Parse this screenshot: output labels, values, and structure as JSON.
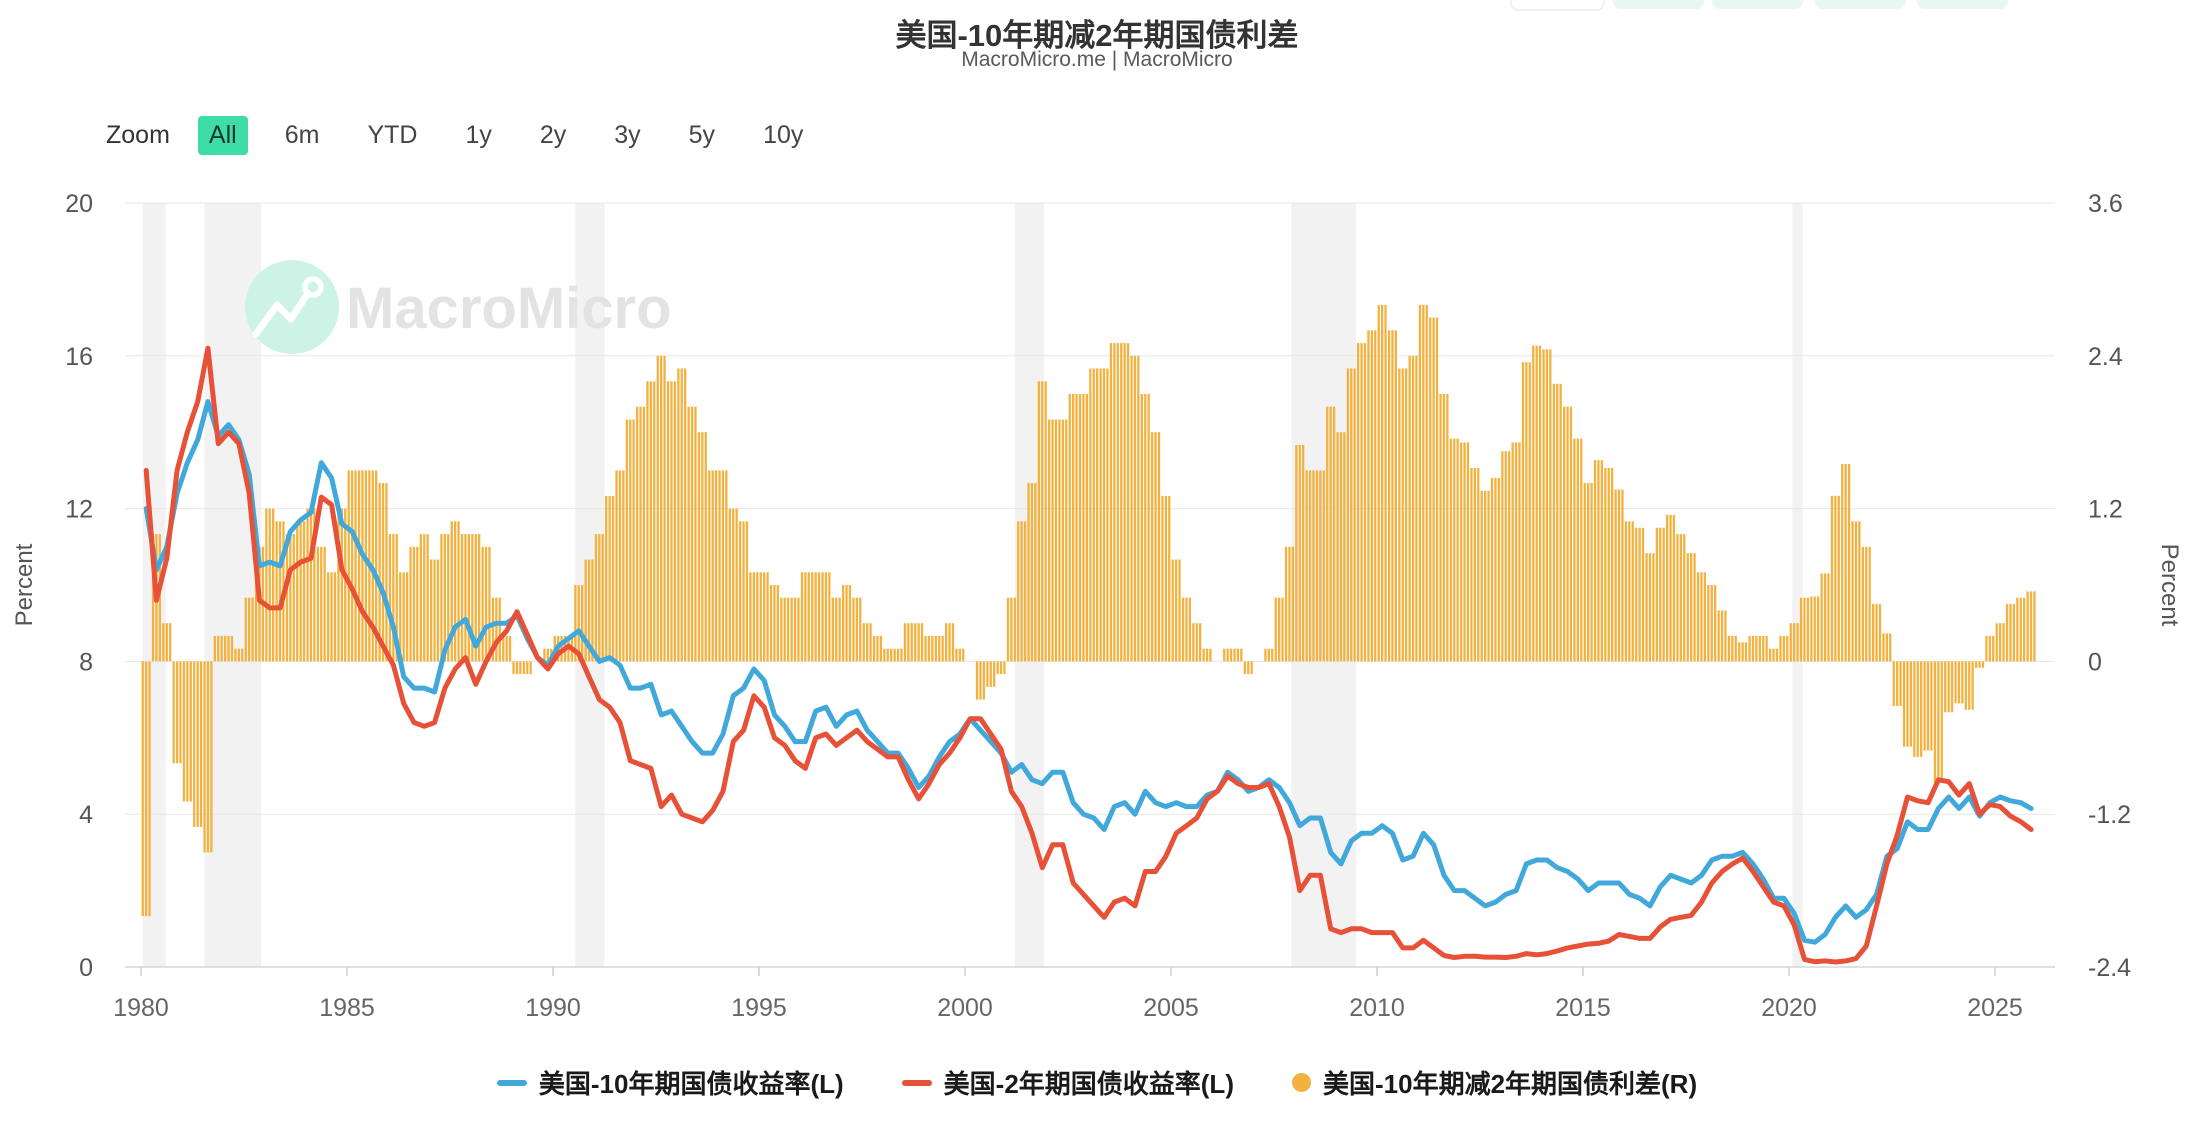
{
  "header": {
    "title": "美国-10年期减2年期国债利差",
    "subtitle": "MacroMicro.me | MacroMicro"
  },
  "topbar": {
    "partial_buttons": [
      "outline",
      "mint",
      "mint",
      "mint",
      "mint"
    ]
  },
  "zoom_toolbar": {
    "label": "Zoom",
    "options": [
      "All",
      "6m",
      "YTD",
      "1y",
      "2y",
      "3y",
      "5y",
      "10y"
    ],
    "selected": "All"
  },
  "watermark": {
    "text": "MacroMicro",
    "logo": "zigzag-line-with-dot-icon"
  },
  "colors": {
    "accent_teal": "#3EDDA8",
    "line_10y": "#41A8DB",
    "line_2y": "#E65138",
    "bars_spread": "#F3B23F",
    "recession_band": "#F2F2F2",
    "watermark_mint": "#CDF3E6",
    "watermark_text": "#E3E3E3",
    "grid": "#E7E7E7",
    "axis_text": "#555555"
  },
  "legend": {
    "items": [
      {
        "label": "美国-10年期国债收益率(L)",
        "color": "#41A8DB",
        "marker": "line"
      },
      {
        "label": "美国-2年期国债收益率(L)",
        "color": "#E65138",
        "marker": "line"
      },
      {
        "label": "美国-10年期减2年期国债利差(R)",
        "color": "#F3B23F",
        "marker": "circle"
      }
    ]
  },
  "chart_data": {
    "type": "mixed",
    "title": "美国-10年期减2年期国债利差",
    "x": {
      "start_year": 1980,
      "points_per_year": 4,
      "count": 184
    },
    "xticks": [
      1980,
      1985,
      1990,
      1995,
      2000,
      2005,
      2010,
      2015,
      2020,
      2025
    ],
    "yaxis_left": {
      "title": "Percent",
      "ticks": [
        0,
        4,
        8,
        12,
        16,
        20
      ],
      "range": [
        0,
        20
      ]
    },
    "yaxis_right": {
      "title": "Percent",
      "ticks": [
        -2.4,
        -1.2,
        0,
        1.2,
        2.4,
        3.6
      ],
      "range": [
        -2.4,
        3.6
      ]
    },
    "grid": "horizontal",
    "recessions": [
      [
        1980.04,
        1980.6
      ],
      [
        1981.54,
        1982.92
      ],
      [
        1990.54,
        1991.25
      ],
      [
        2001.21,
        2001.92
      ],
      [
        2007.92,
        2009.5
      ],
      [
        2020.08,
        2020.33
      ]
    ],
    "series": [
      {
        "name": "美国-10年期国债收益率(L)",
        "type": "line",
        "axis": "left",
        "color": "#41A8DB",
        "values": [
          12.0,
          10.4,
          11.0,
          12.4,
          13.2,
          13.8,
          14.8,
          13.9,
          14.2,
          13.8,
          12.9,
          10.5,
          10.6,
          10.5,
          11.4,
          11.7,
          11.9,
          13.2,
          12.8,
          11.6,
          11.4,
          10.8,
          10.4,
          9.8,
          8.9,
          7.6,
          7.3,
          7.3,
          7.2,
          8.3,
          8.9,
          9.1,
          8.4,
          8.9,
          9.0,
          9.0,
          9.2,
          8.6,
          8.1,
          7.9,
          8.4,
          8.6,
          8.8,
          8.4,
          8.0,
          8.1,
          7.9,
          7.3,
          7.3,
          7.4,
          6.6,
          6.7,
          6.3,
          5.9,
          5.6,
          5.6,
          6.1,
          7.1,
          7.3,
          7.8,
          7.5,
          6.6,
          6.3,
          5.9,
          5.9,
          6.7,
          6.8,
          6.3,
          6.6,
          6.7,
          6.2,
          5.9,
          5.6,
          5.6,
          5.2,
          4.7,
          5.0,
          5.5,
          5.9,
          6.1,
          6.5,
          6.2,
          5.9,
          5.6,
          5.1,
          5.3,
          4.9,
          4.8,
          5.1,
          5.1,
          4.3,
          4.0,
          3.9,
          3.6,
          4.2,
          4.3,
          4.0,
          4.6,
          4.3,
          4.2,
          4.3,
          4.2,
          4.2,
          4.5,
          4.6,
          5.1,
          4.9,
          4.6,
          4.7,
          4.9,
          4.7,
          4.3,
          3.7,
          3.9,
          3.9,
          3.0,
          2.7,
          3.3,
          3.5,
          3.5,
          3.7,
          3.5,
          2.8,
          2.9,
          3.5,
          3.2,
          2.4,
          2.0,
          2.0,
          1.8,
          1.6,
          1.7,
          1.9,
          2.0,
          2.7,
          2.8,
          2.8,
          2.6,
          2.5,
          2.3,
          2.0,
          2.2,
          2.2,
          2.2,
          1.9,
          1.8,
          1.6,
          2.1,
          2.4,
          2.3,
          2.2,
          2.4,
          2.8,
          2.9,
          2.9,
          3.0,
          2.7,
          2.3,
          1.8,
          1.8,
          1.4,
          0.7,
          0.65,
          0.85,
          1.3,
          1.6,
          1.3,
          1.5,
          1.9,
          2.9,
          3.1,
          3.8,
          3.6,
          3.6,
          4.15,
          4.45,
          4.15,
          4.45,
          3.95,
          4.3,
          4.45,
          4.35,
          4.3,
          4.15
        ]
      },
      {
        "name": "美国-2年期国债收益率(L)",
        "type": "line",
        "axis": "left",
        "color": "#E65138",
        "values": [
          13.0,
          9.6,
          10.7,
          13.0,
          14.0,
          14.8,
          16.2,
          13.7,
          14.0,
          13.7,
          12.4,
          9.6,
          9.4,
          9.4,
          10.4,
          10.6,
          10.7,
          12.3,
          12.1,
          10.4,
          9.9,
          9.3,
          8.9,
          8.4,
          7.9,
          6.9,
          6.4,
          6.3,
          6.4,
          7.3,
          7.8,
          8.1,
          7.4,
          8.0,
          8.5,
          8.8,
          9.3,
          8.7,
          8.1,
          7.8,
          8.2,
          8.4,
          8.2,
          7.6,
          7.0,
          6.8,
          6.4,
          5.4,
          5.3,
          5.2,
          4.2,
          4.5,
          4.0,
          3.9,
          3.8,
          4.1,
          4.6,
          5.9,
          6.2,
          7.1,
          6.8,
          6.0,
          5.8,
          5.4,
          5.2,
          6.0,
          6.1,
          5.8,
          6.0,
          6.2,
          5.9,
          5.7,
          5.5,
          5.5,
          4.9,
          4.4,
          4.8,
          5.3,
          5.6,
          6.0,
          6.5,
          6.5,
          6.1,
          5.7,
          4.6,
          4.2,
          3.5,
          2.6,
          3.2,
          3.2,
          2.2,
          1.9,
          1.6,
          1.3,
          1.7,
          1.8,
          1.6,
          2.5,
          2.5,
          2.9,
          3.5,
          3.7,
          3.9,
          4.4,
          4.6,
          5.0,
          4.8,
          4.7,
          4.7,
          4.8,
          4.2,
          3.4,
          2.0,
          2.4,
          2.4,
          1.0,
          0.9,
          1.0,
          1.0,
          0.9,
          0.9,
          0.9,
          0.5,
          0.5,
          0.7,
          0.5,
          0.3,
          0.25,
          0.28,
          0.28,
          0.26,
          0.26,
          0.25,
          0.28,
          0.35,
          0.32,
          0.35,
          0.42,
          0.5,
          0.55,
          0.6,
          0.62,
          0.68,
          0.85,
          0.8,
          0.75,
          0.75,
          1.05,
          1.25,
          1.3,
          1.35,
          1.7,
          2.2,
          2.5,
          2.7,
          2.85,
          2.5,
          2.1,
          1.7,
          1.6,
          1.1,
          0.2,
          0.14,
          0.16,
          0.13,
          0.16,
          0.22,
          0.55,
          1.6,
          2.7,
          3.45,
          4.45,
          4.35,
          4.3,
          4.9,
          4.85,
          4.5,
          4.8,
          4.0,
          4.25,
          4.2,
          3.95,
          3.8,
          3.6
        ]
      },
      {
        "name": "美国-10年期减2年期国债利差(R)",
        "type": "bar",
        "axis": "right",
        "color": "#F3B23F",
        "values": [
          -2.0,
          1.0,
          0.3,
          -0.8,
          -1.1,
          -1.3,
          -1.5,
          0.2,
          0.2,
          0.1,
          0.5,
          0.9,
          1.2,
          1.1,
          1.0,
          1.1,
          1.2,
          0.9,
          0.7,
          1.2,
          1.5,
          1.5,
          1.5,
          1.4,
          1.0,
          0.7,
          0.9,
          1.0,
          0.8,
          1.0,
          1.1,
          1.0,
          1.0,
          0.9,
          0.5,
          0.2,
          -0.1,
          -0.1,
          0.0,
          0.1,
          0.2,
          0.2,
          0.6,
          0.8,
          1.0,
          1.3,
          1.5,
          1.9,
          2.0,
          2.2,
          2.4,
          2.2,
          2.3,
          2.0,
          1.8,
          1.5,
          1.5,
          1.2,
          1.1,
          0.7,
          0.7,
          0.6,
          0.5,
          0.5,
          0.7,
          0.7,
          0.7,
          0.5,
          0.6,
          0.5,
          0.3,
          0.2,
          0.1,
          0.1,
          0.3,
          0.3,
          0.2,
          0.2,
          0.3,
          0.1,
          0.0,
          -0.3,
          -0.2,
          -0.1,
          0.5,
          1.1,
          1.4,
          2.2,
          1.9,
          1.9,
          2.1,
          2.1,
          2.3,
          2.3,
          2.5,
          2.5,
          2.4,
          2.1,
          1.8,
          1.3,
          0.8,
          0.5,
          0.3,
          0.1,
          0.0,
          0.1,
          0.1,
          -0.1,
          0.0,
          0.1,
          0.5,
          0.9,
          1.7,
          1.5,
          1.5,
          2.0,
          1.8,
          2.3,
          2.5,
          2.6,
          2.8,
          2.6,
          2.3,
          2.4,
          2.8,
          2.7,
          2.1,
          1.75,
          1.72,
          1.52,
          1.34,
          1.44,
          1.65,
          1.72,
          2.35,
          2.48,
          2.45,
          2.18,
          2.0,
          1.75,
          1.4,
          1.58,
          1.52,
          1.35,
          1.1,
          1.05,
          0.85,
          1.05,
          1.15,
          1.0,
          0.85,
          0.7,
          0.6,
          0.4,
          0.2,
          0.15,
          0.2,
          0.2,
          0.1,
          0.2,
          0.3,
          0.5,
          0.51,
          0.69,
          1.3,
          1.55,
          1.1,
          0.9,
          0.45,
          0.22,
          -0.35,
          -0.67,
          -0.75,
          -0.7,
          -0.95,
          -0.4,
          -0.33,
          -0.38,
          -0.05,
          0.2,
          0.3,
          0.45,
          0.5,
          0.55
        ]
      }
    ]
  }
}
